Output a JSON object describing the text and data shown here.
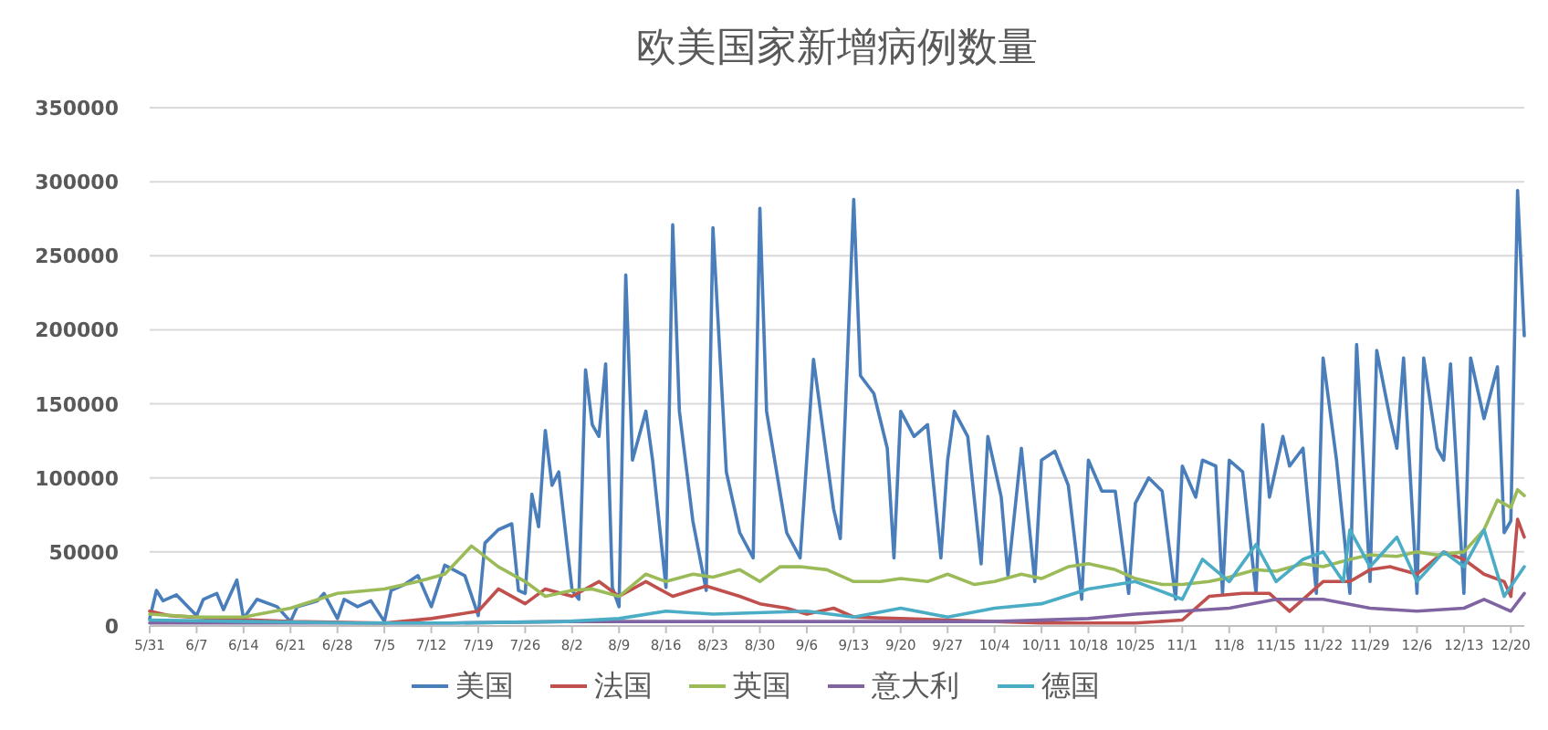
{
  "chart_data": {
    "type": "line",
    "title": "欧美国家新增病例数量",
    "xlim": [
      "--05-31",
      "--12-22"
    ],
    "xticks": [
      {
        "value": "--05-31",
        "label": "5/31"
      },
      {
        "value": "--06-07",
        "label": "6/7"
      },
      {
        "value": "--06-14",
        "label": "6/14"
      },
      {
        "value": "--06-21",
        "label": "6/21"
      },
      {
        "value": "--06-28",
        "label": "6/28"
      },
      {
        "value": "--07-05",
        "label": "7/5"
      },
      {
        "value": "--07-12",
        "label": "7/12"
      },
      {
        "value": "--07-19",
        "label": "7/19"
      },
      {
        "value": "--07-26",
        "label": "7/26"
      },
      {
        "value": "--08-02",
        "label": "8/2"
      },
      {
        "value": "--08-09",
        "label": "8/9"
      },
      {
        "value": "--08-16",
        "label": "8/16"
      },
      {
        "value": "--08-23",
        "label": "8/23"
      },
      {
        "value": "--08-30",
        "label": "8/30"
      },
      {
        "value": "--09-06",
        "label": "9/6"
      },
      {
        "value": "--09-13",
        "label": "9/13"
      },
      {
        "value": "--09-20",
        "label": "9/20"
      },
      {
        "value": "--09-27",
        "label": "9/27"
      },
      {
        "value": "--10-04",
        "label": "10/4"
      },
      {
        "value": "--10-11",
        "label": "10/11"
      },
      {
        "value": "--10-18",
        "label": "10/18"
      },
      {
        "value": "--10-25",
        "label": "10/25"
      },
      {
        "value": "--11-01",
        "label": "11/1"
      },
      {
        "value": "--11-08",
        "label": "11/8"
      },
      {
        "value": "--11-15",
        "label": "11/15"
      },
      {
        "value": "--11-22",
        "label": "11/22"
      },
      {
        "value": "--11-29",
        "label": "11/29"
      },
      {
        "value": "--12-06",
        "label": "12/6"
      },
      {
        "value": "--12-13",
        "label": "12/13"
      },
      {
        "value": "--12-20",
        "label": "12/20"
      }
    ],
    "ylim": [
      0,
      350000
    ],
    "yticks": [
      0,
      50000,
      100000,
      150000,
      200000,
      250000,
      300000,
      350000
    ],
    "grid": "y",
    "legend": "bottom",
    "marker": "none",
    "line_style": "solid",
    "series": [
      {
        "name": "美国",
        "color": "#4a7ebb",
        "x": [
          "--05-31",
          "--06-01",
          "--06-02",
          "--06-04",
          "--06-07",
          "--06-08",
          "--06-10",
          "--06-11",
          "--06-13",
          "--06-14",
          "--06-16",
          "--06-19",
          "--06-21",
          "--06-22",
          "--06-25",
          "--06-26",
          "--06-28",
          "--06-29",
          "--07-01",
          "--07-03",
          "--07-05",
          "--07-06",
          "--07-08",
          "--07-10",
          "--07-12",
          "--07-14",
          "--07-17",
          "--07-19",
          "--07-20",
          "--07-22",
          "--07-24",
          "--07-25",
          "--07-26",
          "--07-27",
          "--07-28",
          "--07-29",
          "--07-30",
          "--07-31",
          "--08-02",
          "--08-03",
          "--08-04",
          "--08-05",
          "--08-06",
          "--08-07",
          "--08-08",
          "--08-09",
          "--08-10",
          "--08-11",
          "--08-13",
          "--08-14",
          "--08-16",
          "--08-17",
          "--08-18",
          "--08-20",
          "--08-22",
          "--08-23",
          "--08-25",
          "--08-27",
          "--08-29",
          "--08-30",
          "--08-31",
          "--09-03",
          "--09-05",
          "--09-07",
          "--09-10",
          "--09-11",
          "--09-13",
          "--09-14",
          "--09-16",
          "--09-18",
          "--09-19",
          "--09-20",
          "--09-22",
          "--09-24",
          "--09-26",
          "--09-27",
          "--09-28",
          "--09-30",
          "--10-02",
          "--10-03",
          "--10-05",
          "--10-06",
          "--10-08",
          "--10-10",
          "--10-11",
          "--10-13",
          "--10-15",
          "--10-17",
          "--10-18",
          "--10-20",
          "--10-22",
          "--10-24",
          "--10-25",
          "--10-27",
          "--10-29",
          "--10-31",
          "--11-01",
          "--11-03",
          "--11-04",
          "--11-06",
          "--11-07",
          "--11-08",
          "--11-10",
          "--11-12",
          "--11-13",
          "--11-14",
          "--11-16",
          "--11-17",
          "--11-19",
          "--11-21",
          "--11-22",
          "--11-24",
          "--11-26",
          "--11-27",
          "--11-29",
          "--11-30",
          "--12-02",
          "--12-03",
          "--12-04",
          "--12-06",
          "--12-07",
          "--12-09",
          "--12-10",
          "--12-11",
          "--12-13",
          "--12-14",
          "--12-16",
          "--12-18",
          "--12-19",
          "--12-20",
          "--12-21",
          "--12-22"
        ],
        "values": [
          5000,
          24000,
          17000,
          21000,
          7000,
          18000,
          22000,
          11000,
          31000,
          5000,
          18000,
          13000,
          3000,
          13000,
          17000,
          22000,
          5000,
          18000,
          13000,
          17000,
          3000,
          24000,
          28000,
          34000,
          13000,
          41000,
          34000,
          7000,
          56000,
          65000,
          69000,
          24000,
          22000,
          89000,
          67000,
          132000,
          95000,
          104000,
          24000,
          18000,
          173000,
          136000,
          128000,
          177000,
          26000,
          13000,
          237000,
          112000,
          145000,
          112000,
          26000,
          271000,
          145000,
          71000,
          24000,
          269000,
          104000,
          63000,
          46000,
          282000,
          145000,
          63000,
          46000,
          180000,
          79000,
          59000,
          288000,
          169000,
          157000,
          120000,
          46000,
          145000,
          128000,
          136000,
          46000,
          112000,
          145000,
          128000,
          42000,
          128000,
          87000,
          34000,
          120000,
          30000,
          112000,
          118000,
          95000,
          18000,
          112000,
          91000,
          91000,
          22000,
          83000,
          100000,
          91000,
          18000,
          108000,
          87000,
          112000,
          108000,
          22000,
          112000,
          104000,
          22000,
          136000,
          87000,
          128000,
          108000,
          120000,
          22000,
          181000,
          112000,
          22000,
          190000,
          30000,
          186000,
          140000,
          120000,
          181000,
          22000,
          181000,
          120000,
          112000,
          177000,
          22000,
          181000,
          140000,
          175000,
          63000,
          71000,
          294000,
          196000
        ]
      },
      {
        "name": "法国",
        "color": "#c0504d",
        "x": [
          "--05-31",
          "--06-03",
          "--06-10",
          "--06-21",
          "--07-05",
          "--07-12",
          "--07-19",
          "--07-22",
          "--07-26",
          "--07-29",
          "--08-02",
          "--08-06",
          "--08-09",
          "--08-13",
          "--08-17",
          "--08-22",
          "--08-27",
          "--08-30",
          "--09-03",
          "--09-06",
          "--09-10",
          "--09-13",
          "--09-20",
          "--09-27",
          "--10-04",
          "--10-11",
          "--10-18",
          "--10-25",
          "--11-01",
          "--11-05",
          "--11-10",
          "--11-14",
          "--11-17",
          "--11-22",
          "--11-26",
          "--11-29",
          "--12-02",
          "--12-06",
          "--12-10",
          "--12-13",
          "--12-16",
          "--12-19",
          "--12-20",
          "--12-21",
          "--12-22"
        ],
        "values": [
          10000,
          7000,
          5000,
          3000,
          2000,
          5000,
          10000,
          25000,
          15000,
          25000,
          20000,
          30000,
          20000,
          30000,
          20000,
          27000,
          20000,
          15000,
          12000,
          8000,
          12000,
          6000,
          5000,
          4000,
          3000,
          2000,
          2000,
          2000,
          4000,
          20000,
          22000,
          22000,
          10000,
          30000,
          30000,
          38000,
          40000,
          35000,
          50000,
          45000,
          35000,
          30000,
          20000,
          72000,
          60000
        ]
      },
      {
        "name": "英国",
        "color": "#9bbb59",
        "x": [
          "--05-31",
          "--06-07",
          "--06-14",
          "--06-21",
          "--06-28",
          "--07-05",
          "--07-10",
          "--07-14",
          "--07-18",
          "--07-22",
          "--07-26",
          "--07-29",
          "--08-02",
          "--08-05",
          "--08-09",
          "--08-13",
          "--08-16",
          "--08-20",
          "--08-23",
          "--08-27",
          "--08-30",
          "--09-02",
          "--09-05",
          "--09-09",
          "--09-13",
          "--09-17",
          "--09-20",
          "--09-24",
          "--09-27",
          "--10-01",
          "--10-04",
          "--10-08",
          "--10-11",
          "--10-15",
          "--10-18",
          "--10-22",
          "--10-25",
          "--10-29",
          "--11-01",
          "--11-05",
          "--11-08",
          "--11-12",
          "--11-15",
          "--11-19",
          "--11-22",
          "--11-26",
          "--11-29",
          "--12-03",
          "--12-06",
          "--12-09",
          "--12-13",
          "--12-16",
          "--12-18",
          "--12-20",
          "--12-21",
          "--12-22"
        ],
        "values": [
          8000,
          6000,
          6000,
          12000,
          22000,
          25000,
          30000,
          35000,
          54000,
          40000,
          30000,
          20000,
          24000,
          25000,
          20000,
          35000,
          30000,
          35000,
          33000,
          38000,
          30000,
          40000,
          40000,
          38000,
          30000,
          30000,
          32000,
          30000,
          35000,
          28000,
          30000,
          35000,
          32000,
          40000,
          42000,
          38000,
          32000,
          28000,
          28000,
          30000,
          33000,
          38000,
          37000,
          42000,
          40000,
          45000,
          48000,
          47000,
          50000,
          48000,
          50000,
          65000,
          85000,
          80000,
          92000,
          88000
        ]
      },
      {
        "name": "意大利",
        "color": "#8064a2",
        "x": [
          "--05-31",
          "--06-15",
          "--07-01",
          "--07-15",
          "--08-01",
          "--08-15",
          "--09-01",
          "--09-15",
          "--10-04",
          "--10-18",
          "--10-25",
          "--11-01",
          "--11-08",
          "--11-15",
          "--11-22",
          "--11-29",
          "--12-06",
          "--12-13",
          "--12-16",
          "--12-20",
          "--12-22"
        ],
        "values": [
          2000,
          2000,
          2000,
          2000,
          3000,
          3000,
          3000,
          3000,
          3000,
          5000,
          8000,
          10000,
          12000,
          18000,
          18000,
          12000,
          10000,
          12000,
          18000,
          10000,
          22000
        ]
      },
      {
        "name": "德国",
        "color": "#4bacc6",
        "x": [
          "--05-31",
          "--06-15",
          "--07-01",
          "--07-15",
          "--08-01",
          "--08-09",
          "--08-16",
          "--08-23",
          "--09-06",
          "--09-13",
          "--09-20",
          "--09-27",
          "--10-04",
          "--10-11",
          "--10-18",
          "--10-25",
          "--11-01",
          "--11-04",
          "--11-08",
          "--11-12",
          "--11-15",
          "--11-19",
          "--11-22",
          "--11-25",
          "--11-26",
          "--11-29",
          "--12-03",
          "--12-06",
          "--12-10",
          "--12-13",
          "--12-16",
          "--12-19",
          "--12-22"
        ],
        "values": [
          4000,
          3000,
          2000,
          2000,
          3000,
          5000,
          10000,
          8000,
          10000,
          6000,
          12000,
          6000,
          12000,
          15000,
          25000,
          30000,
          18000,
          45000,
          30000,
          55000,
          30000,
          45000,
          50000,
          30000,
          65000,
          40000,
          60000,
          30000,
          50000,
          40000,
          65000,
          20000,
          40000
        ]
      }
    ]
  }
}
